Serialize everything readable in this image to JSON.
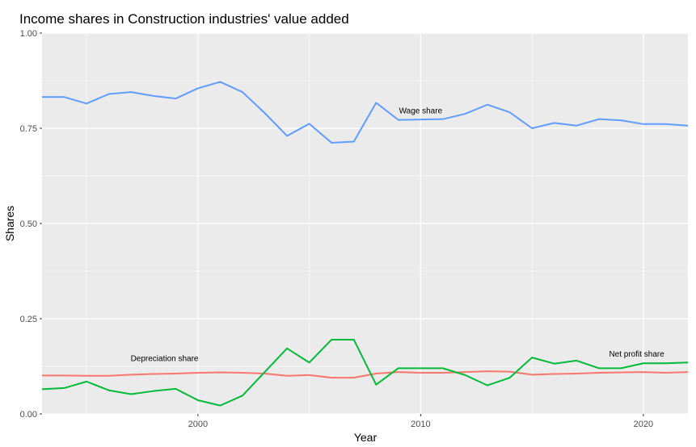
{
  "chart_data": {
    "type": "line",
    "title": "Income shares in Construction industries' value added",
    "xlabel": "Year",
    "ylabel": "Shares",
    "xlim": [
      1993,
      2022
    ],
    "ylim": [
      0,
      1
    ],
    "x_ticks": [
      2000,
      2010,
      2020
    ],
    "y_ticks": [
      0,
      0.25,
      0.5,
      0.75,
      1.0
    ],
    "y_tick_labels": [
      "0.00",
      "0.25",
      "0.50",
      "0.75",
      "1.00"
    ],
    "grid": true,
    "legend": "none",
    "x": [
      1993,
      1994,
      1995,
      1996,
      1997,
      1998,
      1999,
      2000,
      2001,
      2002,
      2003,
      2004,
      2005,
      2006,
      2007,
      2008,
      2009,
      2010,
      2011,
      2012,
      2013,
      2014,
      2015,
      2016,
      2017,
      2018,
      2019,
      2020,
      2021,
      2022
    ],
    "series": [
      {
        "name": "Wage share",
        "color": "#619CFF",
        "values": [
          0.832,
          0.832,
          0.815,
          0.84,
          0.845,
          0.835,
          0.828,
          0.855,
          0.872,
          0.845,
          0.79,
          0.73,
          0.762,
          0.712,
          0.715,
          0.817,
          0.772,
          0.773,
          0.774,
          0.788,
          0.812,
          0.792,
          0.75,
          0.764,
          0.757,
          0.774,
          0.771,
          0.761,
          0.761,
          0.757
        ]
      },
      {
        "name": "Depreciation share",
        "color": "#F8766D",
        "values": [
          0.101,
          0.101,
          0.1,
          0.1,
          0.103,
          0.105,
          0.106,
          0.108,
          0.109,
          0.108,
          0.106,
          0.1,
          0.102,
          0.095,
          0.095,
          0.106,
          0.11,
          0.108,
          0.108,
          0.11,
          0.112,
          0.111,
          0.103,
          0.105,
          0.106,
          0.108,
          0.109,
          0.11,
          0.108,
          0.11
        ]
      },
      {
        "name": "Net profit share",
        "color": "#00BA38",
        "values": [
          0.065,
          0.068,
          0.085,
          0.062,
          0.052,
          0.06,
          0.066,
          0.036,
          0.022,
          0.048,
          0.11,
          0.172,
          0.135,
          0.195,
          0.195,
          0.077,
          0.12,
          0.12,
          0.12,
          0.102,
          0.075,
          0.095,
          0.148,
          0.132,
          0.14,
          0.12,
          0.12,
          0.133,
          0.133,
          0.135
        ]
      }
    ],
    "annotations": [
      {
        "text": "Wage share",
        "x": 2010,
        "y": 0.797
      },
      {
        "text": "Depreciation share",
        "x": 1998.5,
        "y": 0.146
      },
      {
        "text": "Net profit share",
        "x": 2019.7,
        "y": 0.158
      }
    ],
    "panel_background": "#EBEBEB",
    "grid_color": "#FFFFFF"
  }
}
